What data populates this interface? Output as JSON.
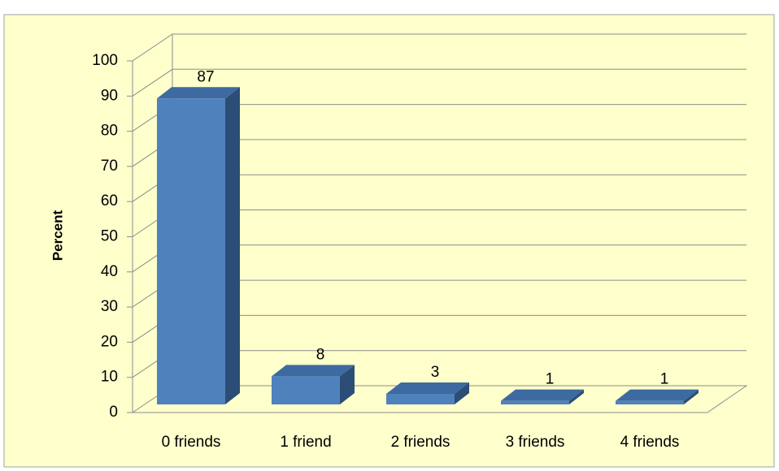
{
  "chart_data": {
    "type": "bar",
    "y_label": "Percent",
    "categories": [
      "0 friends",
      "1 friend",
      "2 friends",
      "3 friends",
      "4 friends"
    ],
    "values": [
      87,
      8,
      3,
      1,
      1
    ],
    "color": "#4f81bd",
    "ylim": [
      0,
      100
    ],
    "yticks": [
      0,
      10,
      20,
      30,
      40,
      50,
      60,
      70,
      80,
      90,
      100
    ],
    "grid": true
  }
}
